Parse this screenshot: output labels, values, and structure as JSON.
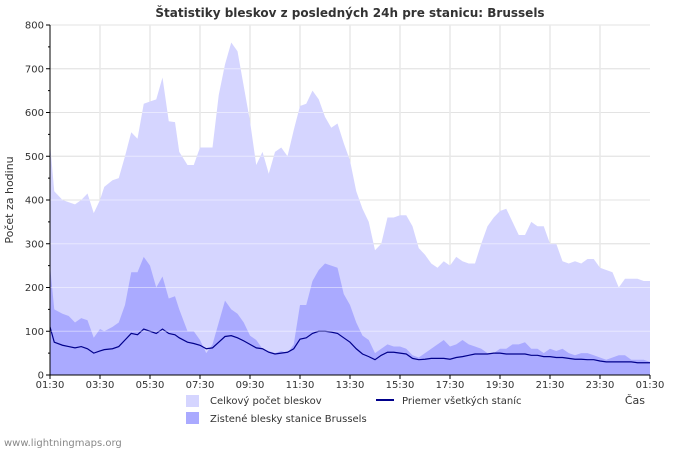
{
  "chart_data": {
    "type": "area",
    "title": "Štatistiky bleskov z posledných 24h pre stanicu: Brussels",
    "xlabel": "Čas",
    "ylabel": "Počet za hodinu",
    "ylim": [
      0,
      800
    ],
    "yticks": [
      0,
      100,
      200,
      300,
      400,
      500,
      600,
      700,
      800
    ],
    "grid": true,
    "legend_position": "bottom",
    "xticks": [
      "01:30",
      "03:30",
      "05:30",
      "07:30",
      "09:30",
      "11:30",
      "13:30",
      "15:30",
      "17:30",
      "19:30",
      "21:30",
      "23:30",
      "01:30"
    ],
    "x_range_hours": [
      0,
      24
    ],
    "series": [
      {
        "name": "Celkový počet bleskov",
        "kind": "area",
        "color": "#d5d5ff",
        "x": [
          0,
          0.17,
          0.5,
          0.75,
          1,
          1.25,
          1.5,
          1.75,
          2,
          2.17,
          2.5,
          2.75,
          3,
          3.25,
          3.5,
          3.75,
          4,
          4.25,
          4.5,
          4.75,
          5,
          5.17,
          5.5,
          5.75,
          6,
          6.25,
          6.5,
          6.75,
          7,
          7.25,
          7.5,
          7.75,
          8,
          8.25,
          8.5,
          8.75,
          9,
          9.25,
          9.5,
          9.75,
          10,
          10.25,
          10.5,
          10.75,
          11,
          11.25,
          11.5,
          11.75,
          12,
          12.25,
          12.5,
          12.75,
          13,
          13.25,
          13.5,
          13.75,
          14,
          14.25,
          14.5,
          14.75,
          15,
          15.25,
          15.5,
          15.75,
          16,
          16.25,
          16.5,
          16.75,
          17,
          17.25,
          17.5,
          17.75,
          18,
          18.25,
          18.5,
          18.75,
          19,
          19.25,
          19.5,
          19.75,
          20,
          20.25,
          20.5,
          20.75,
          21,
          21.25,
          21.5,
          21.75,
          22,
          22.25,
          22.5,
          22.75,
          23,
          23.25,
          23.5,
          23.75,
          24
        ],
        "values": [
          530,
          420,
          400,
          395,
          390,
          400,
          415,
          370,
          400,
          430,
          445,
          450,
          500,
          555,
          540,
          620,
          625,
          630,
          680,
          580,
          578,
          510,
          480,
          480,
          520,
          520,
          520,
          640,
          710,
          760,
          740,
          660,
          580,
          480,
          510,
          460,
          510,
          520,
          500,
          560,
          615,
          620,
          650,
          630,
          590,
          565,
          575,
          530,
          490,
          420,
          380,
          350,
          285,
          300,
          360,
          360,
          365,
          365,
          340,
          290,
          275,
          255,
          245,
          260,
          250,
          270,
          260,
          255,
          255,
          300,
          340,
          360,
          375,
          380,
          350,
          320,
          320,
          350,
          340,
          340,
          300,
          300,
          260,
          255,
          260,
          255,
          265,
          265,
          245,
          240,
          235,
          200,
          220,
          220,
          220,
          215,
          215
        ]
      },
      {
        "name": "Zistené blesky stanice Brussels",
        "kind": "area",
        "color": "#aaaaff",
        "x": [
          0,
          0.17,
          0.5,
          0.75,
          1,
          1.25,
          1.5,
          1.75,
          2,
          2.17,
          2.5,
          2.75,
          3,
          3.25,
          3.5,
          3.75,
          4,
          4.25,
          4.5,
          4.75,
          5,
          5.17,
          5.5,
          5.75,
          6,
          6.25,
          6.5,
          6.75,
          7,
          7.25,
          7.5,
          7.75,
          8,
          8.25,
          8.5,
          8.75,
          9,
          9.25,
          9.5,
          9.75,
          10,
          10.25,
          10.5,
          10.75,
          11,
          11.25,
          11.5,
          11.75,
          12,
          12.25,
          12.5,
          12.75,
          13,
          13.25,
          13.5,
          13.75,
          14,
          14.25,
          14.5,
          14.75,
          15,
          15.25,
          15.5,
          15.75,
          16,
          16.25,
          16.5,
          16.75,
          17,
          17.25,
          17.5,
          17.75,
          18,
          18.25,
          18.5,
          18.75,
          19,
          19.25,
          19.5,
          19.75,
          20,
          20.25,
          20.5,
          20.75,
          21,
          21.25,
          21.5,
          21.75,
          22,
          22.25,
          22.5,
          22.75,
          23,
          23.25,
          23.5,
          23.75,
          24
        ],
        "values": [
          250,
          150,
          140,
          135,
          120,
          130,
          125,
          85,
          105,
          100,
          110,
          120,
          160,
          235,
          235,
          270,
          250,
          200,
          225,
          175,
          180,
          150,
          100,
          100,
          80,
          50,
          70,
          120,
          170,
          150,
          140,
          120,
          90,
          80,
          60,
          55,
          50,
          55,
          50,
          70,
          160,
          160,
          215,
          240,
          255,
          250,
          245,
          185,
          160,
          120,
          90,
          80,
          50,
          60,
          70,
          65,
          65,
          60,
          45,
          40,
          50,
          60,
          70,
          80,
          65,
          70,
          80,
          70,
          65,
          60,
          50,
          50,
          60,
          60,
          70,
          70,
          75,
          60,
          60,
          50,
          60,
          55,
          60,
          50,
          45,
          50,
          50,
          45,
          40,
          35,
          40,
          45,
          45,
          35,
          35,
          35,
          30
        ]
      },
      {
        "name": "Priemer všetkých staníc",
        "kind": "line",
        "color": "#00008b",
        "x": [
          0,
          0.17,
          0.5,
          0.75,
          1,
          1.25,
          1.5,
          1.75,
          2,
          2.17,
          2.5,
          2.75,
          3,
          3.25,
          3.5,
          3.75,
          4,
          4.25,
          4.5,
          4.75,
          5,
          5.17,
          5.5,
          5.75,
          6,
          6.25,
          6.5,
          6.75,
          7,
          7.25,
          7.5,
          7.75,
          8,
          8.25,
          8.5,
          8.75,
          9,
          9.25,
          9.5,
          9.75,
          10,
          10.25,
          10.5,
          10.75,
          11,
          11.25,
          11.5,
          11.75,
          12,
          12.25,
          12.5,
          12.75,
          13,
          13.25,
          13.5,
          13.75,
          14,
          14.25,
          14.5,
          14.75,
          15,
          15.25,
          15.5,
          15.75,
          16,
          16.25,
          16.5,
          16.75,
          17,
          17.25,
          17.5,
          17.75,
          18,
          18.25,
          18.5,
          18.75,
          19,
          19.25,
          19.5,
          19.75,
          20,
          20.25,
          20.5,
          20.75,
          21,
          21.25,
          21.5,
          21.75,
          22,
          22.25,
          22.5,
          22.75,
          23,
          23.25,
          23.5,
          23.75,
          24
        ],
        "values": [
          110,
          75,
          68,
          65,
          62,
          65,
          60,
          50,
          55,
          58,
          60,
          65,
          80,
          95,
          92,
          105,
          100,
          95,
          105,
          95,
          92,
          85,
          75,
          72,
          68,
          60,
          62,
          75,
          88,
          90,
          85,
          78,
          70,
          62,
          60,
          52,
          48,
          50,
          52,
          60,
          82,
          85,
          95,
          100,
          100,
          98,
          95,
          85,
          75,
          60,
          48,
          42,
          35,
          45,
          52,
          52,
          50,
          48,
          38,
          35,
          36,
          38,
          38,
          38,
          36,
          40,
          42,
          45,
          48,
          48,
          48,
          50,
          50,
          48,
          48,
          48,
          48,
          45,
          45,
          42,
          42,
          40,
          40,
          38,
          36,
          36,
          35,
          35,
          32,
          30,
          30,
          30,
          30,
          30,
          28,
          28,
          28
        ]
      }
    ]
  },
  "footer_text": "www.lightningmaps.org"
}
